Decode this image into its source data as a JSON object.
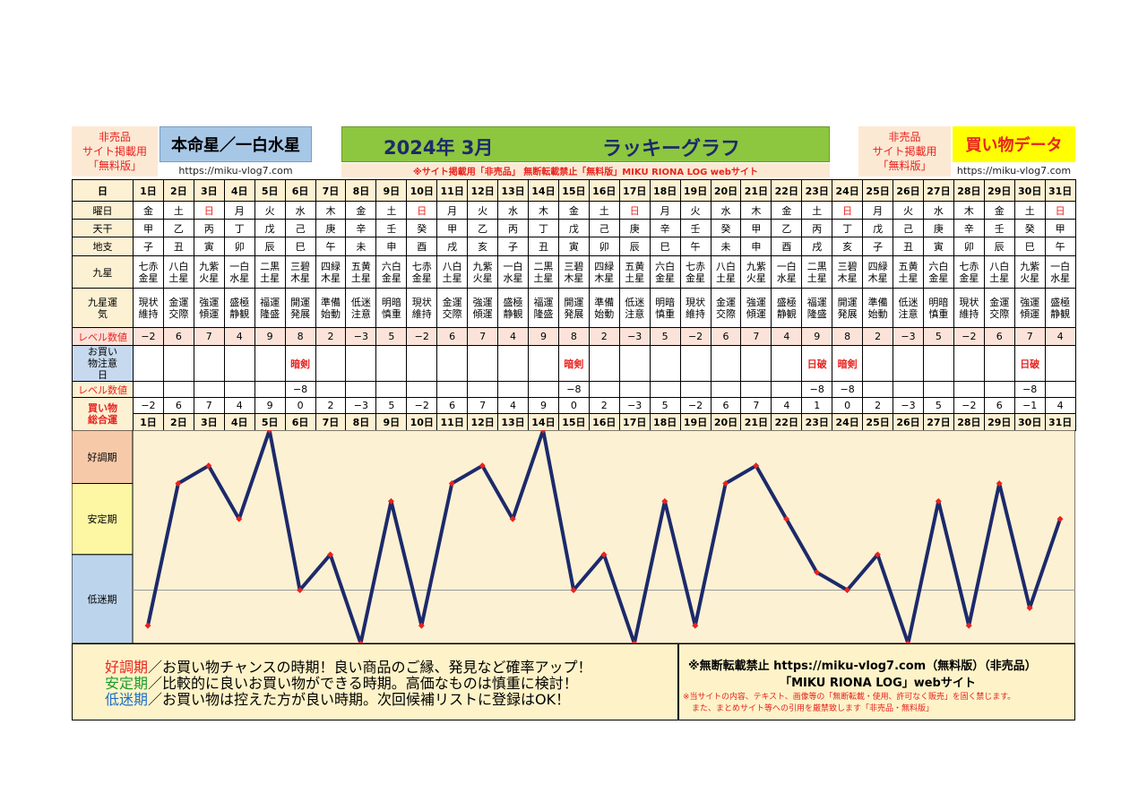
{
  "header": {
    "left_note": [
      "非売品",
      "サイト掲載用",
      "「無料版」"
    ],
    "title": "本命星／一白水星",
    "left_url": "https://miku-vlog7.com",
    "month_label": "2024年 3月",
    "graph_label": "ラッキーグラフ",
    "notice_strip": "※サイト掲載用「非売品」 無断転載禁止「無料版」MIKU RIONA LOG webサイト",
    "right_note": [
      "非売品",
      "サイト掲載用",
      "「無料版」"
    ],
    "right_title": "買い物データ",
    "right_url": "https://miku-vlog7.com"
  },
  "colors": {
    "line": "#1c2a6b",
    "marker": "#e8231f",
    "good_zone": "#f6c9a9",
    "stable_zone": "#fdf6a3",
    "low_zone": "#bcd4ec",
    "plot_bg": "#fdf1d3"
  },
  "table": {
    "row_labels": {
      "day": "日",
      "weekday": "曜日",
      "tenkan": "天干",
      "chishi": "地支",
      "kyusei": "九星",
      "fortune": "九星運気",
      "level": "レベル数値",
      "caution": "お買い物注意日",
      "caution_level": "レベル数値",
      "total": "買い物総合運"
    },
    "days": [
      "1日",
      "2日",
      "3日",
      "4日",
      "5日",
      "6日",
      "7日",
      "8日",
      "9日",
      "10日",
      "11日",
      "12日",
      "13日",
      "14日",
      "15日",
      "16日",
      "17日",
      "18日",
      "19日",
      "20日",
      "21日",
      "22日",
      "23日",
      "24日",
      "25日",
      "26日",
      "27日",
      "28日",
      "29日",
      "30日",
      "31日"
    ],
    "weekdays": [
      "金",
      "土",
      "日",
      "月",
      "火",
      "水",
      "木",
      "金",
      "土",
      "日",
      "月",
      "火",
      "水",
      "木",
      "金",
      "土",
      "日",
      "月",
      "火",
      "水",
      "木",
      "金",
      "土",
      "日",
      "月",
      "火",
      "水",
      "木",
      "金",
      "土",
      "日"
    ],
    "tenkan": [
      "甲",
      "乙",
      "丙",
      "丁",
      "戊",
      "己",
      "庚",
      "辛",
      "壬",
      "癸",
      "甲",
      "乙",
      "丙",
      "丁",
      "戊",
      "己",
      "庚",
      "辛",
      "壬",
      "癸",
      "甲",
      "乙",
      "丙",
      "丁",
      "戊",
      "己",
      "庚",
      "辛",
      "壬",
      "癸",
      "甲"
    ],
    "chishi": [
      "子",
      "丑",
      "寅",
      "卯",
      "辰",
      "巳",
      "午",
      "未",
      "申",
      "酉",
      "戌",
      "亥",
      "子",
      "丑",
      "寅",
      "卯",
      "辰",
      "巳",
      "午",
      "未",
      "申",
      "酉",
      "戌",
      "亥",
      "子",
      "丑",
      "寅",
      "卯",
      "辰",
      "巳",
      "午"
    ],
    "kyusei": [
      [
        "七赤",
        "金星"
      ],
      [
        "八白",
        "土星"
      ],
      [
        "九紫",
        "火星"
      ],
      [
        "一白",
        "水星"
      ],
      [
        "二黒",
        "土星"
      ],
      [
        "三碧",
        "木星"
      ],
      [
        "四緑",
        "木星"
      ],
      [
        "五黄",
        "土星"
      ],
      [
        "六白",
        "金星"
      ],
      [
        "七赤",
        "金星"
      ],
      [
        "八白",
        "土星"
      ],
      [
        "九紫",
        "火星"
      ],
      [
        "一白",
        "水星"
      ],
      [
        "二黒",
        "土星"
      ],
      [
        "三碧",
        "木星"
      ],
      [
        "四緑",
        "木星"
      ],
      [
        "五黄",
        "土星"
      ],
      [
        "六白",
        "金星"
      ],
      [
        "七赤",
        "金星"
      ],
      [
        "八白",
        "土星"
      ],
      [
        "九紫",
        "火星"
      ],
      [
        "一白",
        "水星"
      ],
      [
        "二黒",
        "土星"
      ],
      [
        "三碧",
        "木星"
      ],
      [
        "四緑",
        "木星"
      ],
      [
        "五黄",
        "土星"
      ],
      [
        "六白",
        "金星"
      ],
      [
        "七赤",
        "金星"
      ],
      [
        "八白",
        "土星"
      ],
      [
        "九紫",
        "火星"
      ],
      [
        "一白",
        "水星"
      ]
    ],
    "fortune": [
      [
        "現状",
        "維持"
      ],
      [
        "金運",
        "交際"
      ],
      [
        "強運",
        "傾運"
      ],
      [
        "盛極",
        "静観"
      ],
      [
        "福運",
        "隆盛"
      ],
      [
        "開運",
        "発展"
      ],
      [
        "準備",
        "始動"
      ],
      [
        "低迷",
        "注意"
      ],
      [
        "明暗",
        "慎重"
      ],
      [
        "現状",
        "維持"
      ],
      [
        "金運",
        "交際"
      ],
      [
        "強運",
        "傾運"
      ],
      [
        "盛極",
        "静観"
      ],
      [
        "福運",
        "隆盛"
      ],
      [
        "開運",
        "発展"
      ],
      [
        "準備",
        "始動"
      ],
      [
        "低迷",
        "注意"
      ],
      [
        "明暗",
        "慎重"
      ],
      [
        "現状",
        "維持"
      ],
      [
        "金運",
        "交際"
      ],
      [
        "強運",
        "傾運"
      ],
      [
        "盛極",
        "静観"
      ],
      [
        "福運",
        "隆盛"
      ],
      [
        "開運",
        "発展"
      ],
      [
        "準備",
        "始動"
      ],
      [
        "低迷",
        "注意"
      ],
      [
        "明暗",
        "慎重"
      ],
      [
        "現状",
        "維持"
      ],
      [
        "金運",
        "交際"
      ],
      [
        "強運",
        "傾運"
      ],
      [
        "盛極",
        "静観"
      ]
    ],
    "levels": [
      "−2",
      "6",
      "7",
      "4",
      "9",
      "8",
      "2",
      "−3",
      "5",
      "−2",
      "6",
      "7",
      "4",
      "9",
      "8",
      "2",
      "−3",
      "5",
      "−2",
      "6",
      "7",
      "4",
      "9",
      "8",
      "2",
      "−3",
      "5",
      "−2",
      "6",
      "7",
      "4"
    ],
    "caution": [
      "",
      "",
      "",
      "",
      "",
      "暗剣",
      "",
      "",
      "",
      "",
      "",
      "",
      "",
      "",
      "暗剣",
      "",
      "",
      "",
      "",
      "",
      "",
      "",
      "日破",
      "暗剣",
      "",
      "",
      "",
      "",
      "",
      "日破",
      ""
    ],
    "caution_levels": [
      "",
      "",
      "",
      "",
      "",
      "−8",
      "",
      "",
      "",
      "",
      "",
      "",
      "",
      "",
      "−8",
      "",
      "",
      "",
      "",
      "",
      "",
      "",
      "−8",
      "−8",
      "",
      "",
      "",
      "",
      "",
      "−8",
      ""
    ],
    "totals": [
      "−2",
      "6",
      "7",
      "4",
      "9",
      "0",
      "2",
      "−3",
      "5",
      "−2",
      "6",
      "7",
      "4",
      "9",
      "0",
      "2",
      "−3",
      "5",
      "−2",
      "6",
      "7",
      "4",
      "1",
      "0",
      "2",
      "−3",
      "5",
      "−2",
      "6",
      "−1",
      "4"
    ]
  },
  "zones": {
    "good": "好調期",
    "stable": "安定期",
    "low": "低迷期"
  },
  "chart_data": {
    "type": "line",
    "x": [
      1,
      2,
      3,
      4,
      5,
      6,
      7,
      8,
      9,
      10,
      11,
      12,
      13,
      14,
      15,
      16,
      17,
      18,
      19,
      20,
      21,
      22,
      23,
      24,
      25,
      26,
      27,
      28,
      29,
      30,
      31
    ],
    "categories": [
      "1日",
      "2日",
      "3日",
      "4日",
      "5日",
      "6日",
      "7日",
      "8日",
      "9日",
      "10日",
      "11日",
      "12日",
      "13日",
      "14日",
      "15日",
      "16日",
      "17日",
      "18日",
      "19日",
      "20日",
      "21日",
      "22日",
      "23日",
      "24日",
      "25日",
      "26日",
      "27日",
      "28日",
      "29日",
      "30日",
      "31日"
    ],
    "series": [
      {
        "values": [
          -2,
          6,
          7,
          4,
          9,
          0,
          2,
          -3,
          5,
          -2,
          6,
          7,
          4,
          9,
          0,
          2,
          -3,
          5,
          -2,
          6,
          7,
          4,
          1,
          0,
          2,
          -3,
          5,
          -2,
          6,
          -1,
          4
        ]
      }
    ],
    "ylim": [
      -3,
      9
    ],
    "zones": [
      {
        "label": "好調期",
        "from": 6,
        "to": 9
      },
      {
        "label": "安定期",
        "from": 2,
        "to": 6
      },
      {
        "label": "低迷期",
        "from": -3,
        "to": 2
      }
    ],
    "reference_line": 0
  },
  "legend": {
    "good_term": "好調期",
    "good_text": "／お買い物チャンスの時期！良い商品のご縁、発見など確率アップ！",
    "stable_term": "安定期",
    "stable_text": "／比較的に良いお買い物ができる時期。高価なものは慎重に検討！",
    "low_term": "低迷期",
    "low_text": "／お買い物は控えた方が良い時期。次回候補リストに登録はOK！"
  },
  "footer": {
    "line1": "※無断転載禁止 https://miku-vlog7.com（無料版）（非売品）",
    "line2": "「MIKU RIONA LOG」webサイト",
    "line3": "※当サイトの内容、テキスト、画像等の「無断転載・使用、許可なく販売」を固く禁じます。",
    "line4": "また、まとめサイト等への引用を厳禁致します「非売品・無料版」"
  }
}
